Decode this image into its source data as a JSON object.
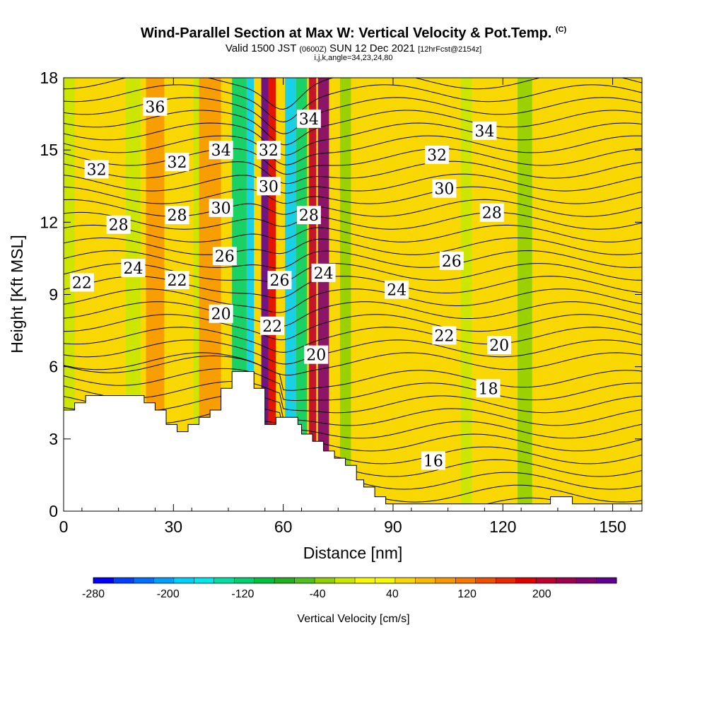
{
  "header": {
    "title": "Wind-Parallel Section at Max W: Vertical Velocity & Pot.Temp.",
    "title_mark": "(C)",
    "valid_prefix": "Valid 1500 JST",
    "valid_utc": "(0600Z)",
    "valid_date": "SUN 12 Dec 2021",
    "forecast": "[12hrFcst@2154z]",
    "indices": "i,j,k,angle=34,23,24,80"
  },
  "chart_data": {
    "type": "heatmap",
    "xlabel": "Distance [nm]",
    "ylabel": "Height [Kft MSL]",
    "xlim": [
      0,
      158
    ],
    "ylim": [
      0,
      18
    ],
    "x_ticks": [
      0,
      30,
      60,
      90,
      120,
      150
    ],
    "y_ticks": [
      0,
      3,
      6,
      9,
      12,
      15,
      18
    ],
    "colorbar": {
      "label": "Vertical Velocity [cm/s]",
      "min": -280,
      "max": 280,
      "step": 20,
      "tick_labels": [
        -280,
        -200,
        -120,
        -40,
        40,
        120,
        200
      ],
      "colors": [
        "#0000ff",
        "#0040ff",
        "#0070ff",
        "#00a0ff",
        "#00d0ff",
        "#00e8e8",
        "#00e0a0",
        "#00d070",
        "#00c040",
        "#20b020",
        "#50c020",
        "#90d000",
        "#c8e800",
        "#f8f800",
        "#f8f800",
        "#f8d800",
        "#f8b800",
        "#f89800",
        "#f87800",
        "#f05000",
        "#e82800",
        "#e00000",
        "#c00030",
        "#a00050",
        "#800070",
        "#600090"
      ]
    },
    "series": [
      {
        "name": "Vertical Velocity",
        "kind": "filled",
        "bands": [
          {
            "x": 1,
            "w": 4,
            "v": -40
          },
          {
            "x": 19,
            "w": 4,
            "v": -40
          },
          {
            "x": 25,
            "w": 5,
            "v": 60
          },
          {
            "x": 37,
            "w": 3,
            "v": -40
          },
          {
            "x": 40,
            "w": 6,
            "v": 60
          },
          {
            "x": 48,
            "w": 4,
            "v": -140
          },
          {
            "x": 51,
            "w": 2,
            "v": -200
          },
          {
            "x": 55,
            "w": 2,
            "v": 260
          },
          {
            "x": 57,
            "w": 2,
            "v": 140
          },
          {
            "x": 62,
            "w": 3,
            "v": -200
          },
          {
            "x": 65,
            "w": 3,
            "v": -140
          },
          {
            "x": 68,
            "w": 2,
            "v": 160
          },
          {
            "x": 71,
            "w": 3,
            "v": 200
          },
          {
            "x": 77,
            "w": 3,
            "v": -60
          },
          {
            "x": 110,
            "w": 3,
            "v": -40
          },
          {
            "x": 126,
            "w": 4,
            "v": -60
          }
        ]
      },
      {
        "name": "Potential Temperature",
        "kind": "contour",
        "levels": [
          {
            "v": 36,
            "x": 25,
            "y": 16.8
          },
          {
            "v": 34,
            "x": 43,
            "y": 15.0
          },
          {
            "v": 34,
            "x": 67,
            "y": 16.3
          },
          {
            "v": 34,
            "x": 115,
            "y": 15.8
          },
          {
            "v": 32,
            "x": 9,
            "y": 14.2
          },
          {
            "v": 32,
            "x": 31,
            "y": 14.5
          },
          {
            "v": 32,
            "x": 56,
            "y": 15.0
          },
          {
            "v": 32,
            "x": 102,
            "y": 14.8
          },
          {
            "v": 30,
            "x": 43,
            "y": 12.6
          },
          {
            "v": 30,
            "x": 56,
            "y": 13.5
          },
          {
            "v": 30,
            "x": 104,
            "y": 13.4
          },
          {
            "v": 28,
            "x": 15,
            "y": 11.9
          },
          {
            "v": 28,
            "x": 31,
            "y": 12.3
          },
          {
            "v": 28,
            "x": 67,
            "y": 12.3
          },
          {
            "v": 28,
            "x": 117,
            "y": 12.4
          },
          {
            "v": 26,
            "x": 44,
            "y": 10.6
          },
          {
            "v": 26,
            "x": 59,
            "y": 9.6
          },
          {
            "v": 26,
            "x": 106,
            "y": 10.4
          },
          {
            "v": 24,
            "x": 19,
            "y": 10.1
          },
          {
            "v": 24,
            "x": 71,
            "y": 9.9
          },
          {
            "v": 24,
            "x": 91,
            "y": 9.2
          },
          {
            "v": 22,
            "x": 5,
            "y": 9.5
          },
          {
            "v": 22,
            "x": 31,
            "y": 9.6
          },
          {
            "v": 22,
            "x": 57,
            "y": 7.7
          },
          {
            "v": 22,
            "x": 104,
            "y": 7.3
          },
          {
            "v": 20,
            "x": 43,
            "y": 8.2
          },
          {
            "v": 20,
            "x": 69,
            "y": 6.5
          },
          {
            "v": 20,
            "x": 119,
            "y": 6.9
          },
          {
            "v": 18,
            "x": 116,
            "y": 5.1
          },
          {
            "v": 16,
            "x": 101,
            "y": 2.1
          }
        ]
      }
    ],
    "terrain": [
      [
        0,
        4.2
      ],
      [
        3,
        4.2
      ],
      [
        3,
        4.5
      ],
      [
        6,
        4.5
      ],
      [
        6,
        4.8
      ],
      [
        22,
        4.8
      ],
      [
        22,
        4.5
      ],
      [
        25,
        4.5
      ],
      [
        25,
        4.2
      ],
      [
        28,
        4.2
      ],
      [
        28,
        3.6
      ],
      [
        31,
        3.6
      ],
      [
        31,
        3.3
      ],
      [
        34,
        3.3
      ],
      [
        34,
        3.6
      ],
      [
        37,
        3.6
      ],
      [
        37,
        3.9
      ],
      [
        40,
        3.9
      ],
      [
        40,
        4.2
      ],
      [
        43,
        4.2
      ],
      [
        43,
        5.1
      ],
      [
        46,
        5.1
      ],
      [
        46,
        5.8
      ],
      [
        52,
        5.8
      ],
      [
        52,
        5.1
      ],
      [
        55,
        5.1
      ],
      [
        55,
        3.6
      ],
      [
        58,
        3.6
      ],
      [
        58,
        3.9
      ],
      [
        64,
        3.9
      ],
      [
        64,
        3.6
      ],
      [
        65,
        3.6
      ],
      [
        65,
        3.2
      ],
      [
        68,
        3.2
      ],
      [
        68,
        2.9
      ],
      [
        71,
        2.9
      ],
      [
        71,
        2.5
      ],
      [
        74,
        2.5
      ],
      [
        74,
        2.2
      ],
      [
        77,
        2.2
      ],
      [
        77,
        1.9
      ],
      [
        80,
        1.9
      ],
      [
        80,
        1.3
      ],
      [
        82,
        1.3
      ],
      [
        82,
        1.0
      ],
      [
        85,
        1.0
      ],
      [
        85,
        0.6
      ],
      [
        88,
        0.6
      ],
      [
        88,
        0.3
      ],
      [
        133,
        0.3
      ],
      [
        133,
        0.6
      ],
      [
        139,
        0.6
      ],
      [
        139,
        0.3
      ],
      [
        158,
        0.3
      ],
      [
        158,
        0
      ]
    ]
  }
}
